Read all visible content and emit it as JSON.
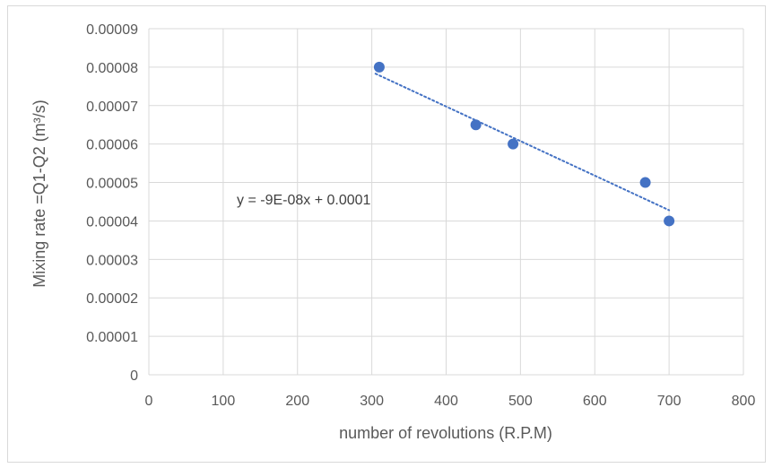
{
  "chart_data": {
    "type": "scatter",
    "xlabel": "number of revolutions (R.P.M)",
    "ylabel": "Mixing rate =Q1-Q2 (m³/s)",
    "xlim": [
      0,
      800
    ],
    "ylim": [
      0,
      9e-05
    ],
    "x_ticks": [
      "0",
      "100",
      "200",
      "300",
      "400",
      "500",
      "600",
      "700",
      "800"
    ],
    "y_ticks": [
      "0",
      "0.00001",
      "0.00002",
      "0.00003",
      "0.00004",
      "0.00005",
      "0.00006",
      "0.00007",
      "0.00008",
      "0.00009"
    ],
    "grid": true,
    "series": [
      {
        "points": [
          {
            "x": 310,
            "y": 8e-05
          },
          {
            "x": 440,
            "y": 6.5e-05
          },
          {
            "x": 490,
            "y": 6e-05
          },
          {
            "x": 668,
            "y": 5e-05
          },
          {
            "x": 700,
            "y": 4e-05
          }
        ],
        "color": "#4472c4"
      }
    ],
    "trendline": {
      "type": "linear",
      "equation": "y = -9E-08x + 0.0001",
      "x_range": [
        305,
        700
      ],
      "y_at_start": 7.83e-05,
      "y_at_end": 4.28e-05,
      "style": "dotted",
      "color": "#4472c4"
    }
  }
}
